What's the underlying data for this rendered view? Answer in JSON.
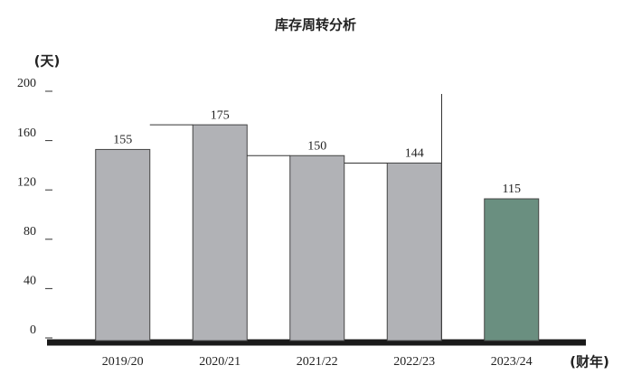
{
  "chart_data": {
    "type": "bar",
    "title": "库存周转分析",
    "y_label": "(天)",
    "x_label": "(财年)",
    "categories": [
      "2019/20",
      "2020/21",
      "2021/22",
      "2022/23",
      "2023/24"
    ],
    "values": [
      155,
      175,
      150,
      144,
      115
    ],
    "colors": [
      "#b1b2b6",
      "#b1b2b6",
      "#b1b2b6",
      "#b1b2b6",
      "#6a8f80"
    ],
    "ylim": [
      0,
      200
    ],
    "yticks": [
      0,
      40,
      80,
      120,
      160,
      200
    ]
  }
}
